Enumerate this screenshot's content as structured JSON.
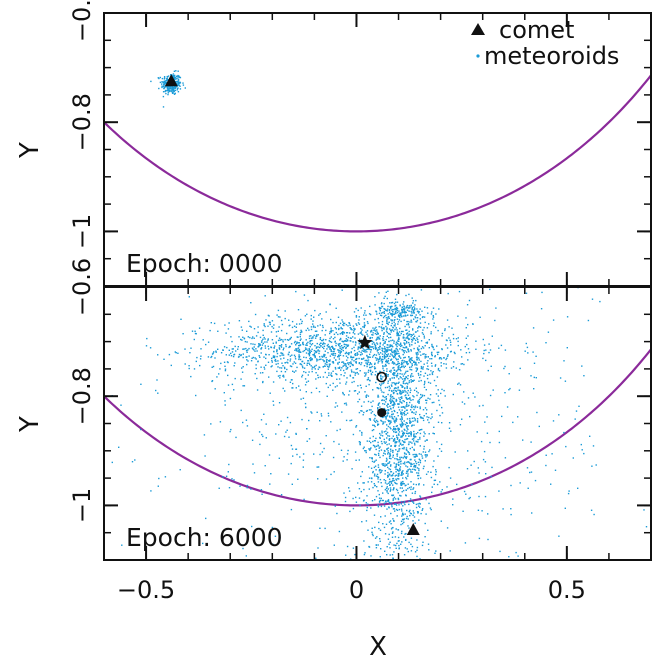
{
  "chart_data": [
    {
      "type": "scatter",
      "panel": "top",
      "annotation": "Epoch: 0000",
      "xlabel": "",
      "ylabel": "Y",
      "xlim": [
        -0.6,
        0.7
      ],
      "ylim": [
        -0.6,
        -1.1
      ],
      "y_inverted": true,
      "xticks": [],
      "yticks": [
        -0.6,
        -0.8,
        -1
      ],
      "ytick_labels": [
        "−0.6",
        "−0.8",
        "−1"
      ],
      "legend": {
        "placement": "top-right",
        "entries": [
          {
            "label": "comet",
            "marker": "triangle",
            "color": "#111111"
          },
          {
            "label": "meteoroids",
            "marker": "dot",
            "color": "#1a9bd7"
          }
        ]
      },
      "series": [
        {
          "name": "Earth orbit",
          "kind": "line",
          "color": "#8b2a9a",
          "function": "y = -sqrt(1 - x^2)",
          "x_range": [
            -0.6,
            0.7
          ]
        },
        {
          "name": "meteoroids",
          "kind": "scatter",
          "color": "#1a9bd7",
          "cloud": {
            "center": [
              -0.44,
              -0.73
            ],
            "spread": [
              0.012,
              0.01
            ],
            "count": 260
          }
        },
        {
          "name": "comet",
          "kind": "marker",
          "marker": "triangle",
          "color": "#111111",
          "x": -0.44,
          "y": -0.725
        }
      ]
    },
    {
      "type": "scatter",
      "panel": "bottom",
      "annotation": "Epoch: 6000",
      "xlabel": "X",
      "ylabel": "Y",
      "xlim": [
        -0.6,
        0.7
      ],
      "ylim": [
        -0.6,
        -1.1
      ],
      "y_inverted": true,
      "xticks": [
        -0.5,
        0,
        0.5
      ],
      "xtick_labels": [
        "−0.5",
        "0",
        "0.5"
      ],
      "yticks": [
        -0.6,
        -0.8,
        -1
      ],
      "ytick_labels": [
        "−0.6",
        "−0.8",
        "−1"
      ],
      "series": [
        {
          "name": "Earth orbit",
          "kind": "line",
          "color": "#8b2a9a",
          "function": "y = -sqrt(1 - x^2)",
          "x_range": [
            -0.6,
            0.7
          ]
        },
        {
          "name": "meteoroids",
          "kind": "scatter",
          "color": "#1a9bd7",
          "clouds": [
            {
              "center": [
                -0.03,
                -0.715
              ],
              "spread": [
                0.15,
                0.03
              ],
              "count": 1400
            },
            {
              "center": [
                0.1,
                -0.87
              ],
              "spread": [
                0.04,
                0.12
              ],
              "count": 1500
            },
            {
              "center": [
                0.1,
                -0.645
              ],
              "spread": [
                0.03,
                0.008
              ],
              "count": 150
            },
            {
              "center": [
                0.05,
                -0.85
              ],
              "spread": [
                0.25,
                0.14
              ],
              "count": 700
            }
          ]
        },
        {
          "name": "star",
          "kind": "marker",
          "marker": "star",
          "color": "#111111",
          "x": 0.02,
          "y": -0.702
        },
        {
          "name": "open circle",
          "kind": "marker",
          "marker": "circle-open",
          "color": "#111111",
          "x": 0.06,
          "y": -0.765
        },
        {
          "name": "filled circle",
          "kind": "marker",
          "marker": "circle",
          "color": "#111111",
          "x": 0.06,
          "y": -0.83
        },
        {
          "name": "comet",
          "kind": "marker",
          "marker": "triangle",
          "color": "#111111",
          "x": 0.135,
          "y": -1.045
        }
      ]
    }
  ]
}
